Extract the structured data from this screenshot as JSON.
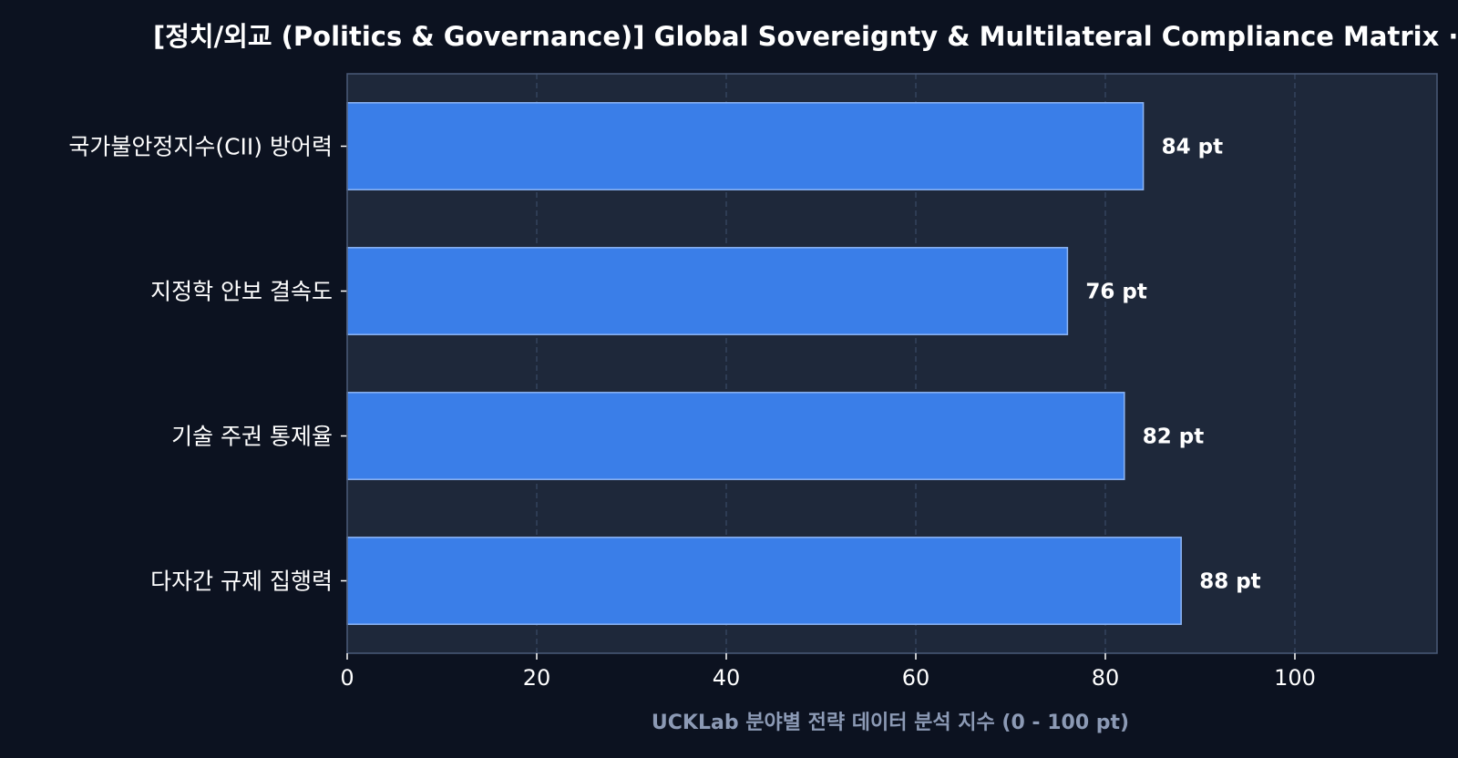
{
  "chart_data": {
    "type": "bar",
    "orientation": "horizontal",
    "title": "[정치/외교 (Politics & Governance)] Global Sovereignty & Multilateral Compliance Matrix · 당국",
    "xlabel": "UCKLab 분야별 전략 데이터 분석 지수 (0 - 100 pt)",
    "ylabel": "",
    "categories": [
      "국가불안정지수(CII) 방어력",
      "지정학 안보 결속도",
      "기술 주권 통제율",
      "다자간 규제 집행력"
    ],
    "values": [
      84,
      76,
      82,
      88
    ],
    "value_labels": [
      "84 pt",
      "76 pt",
      "82 pt",
      "88 pt"
    ],
    "x_ticks": [
      0,
      20,
      40,
      60,
      80,
      100
    ],
    "x_tick_labels": [
      "0",
      "20",
      "40",
      "60",
      "80",
      "100"
    ],
    "xlim": [
      0,
      115
    ],
    "grid": "vertical dashed",
    "legend": "none",
    "colors": {
      "page_background": "#0c1220",
      "plot_background": "#1e283a",
      "bar_fill": "#3a7ee8",
      "bar_edge": "#8db6f5",
      "grid": "#3a4a66",
      "axis_frame": "#4a5a78",
      "text": "#ffffff",
      "axis_title": "#8c9ab5"
    }
  }
}
